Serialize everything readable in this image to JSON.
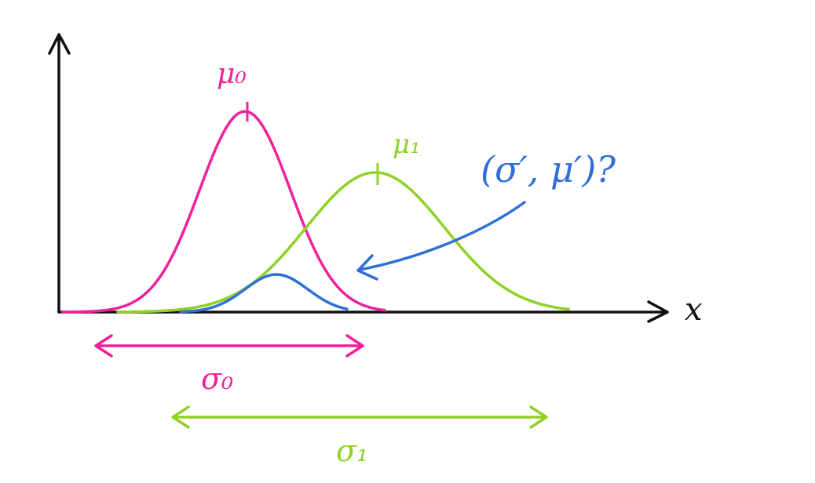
{
  "diagram": {
    "x_axis_label": "x",
    "labels": {
      "mu0": "μ₀",
      "mu1": "μ₁",
      "sigma0": "σ₀",
      "sigma1": "σ₁",
      "question": "(σ′, μ′)?"
    },
    "colors": {
      "axis": "#111111",
      "pink": "#f0219a",
      "green": "#8fd124",
      "blue": "#2f6fd6"
    }
  }
}
